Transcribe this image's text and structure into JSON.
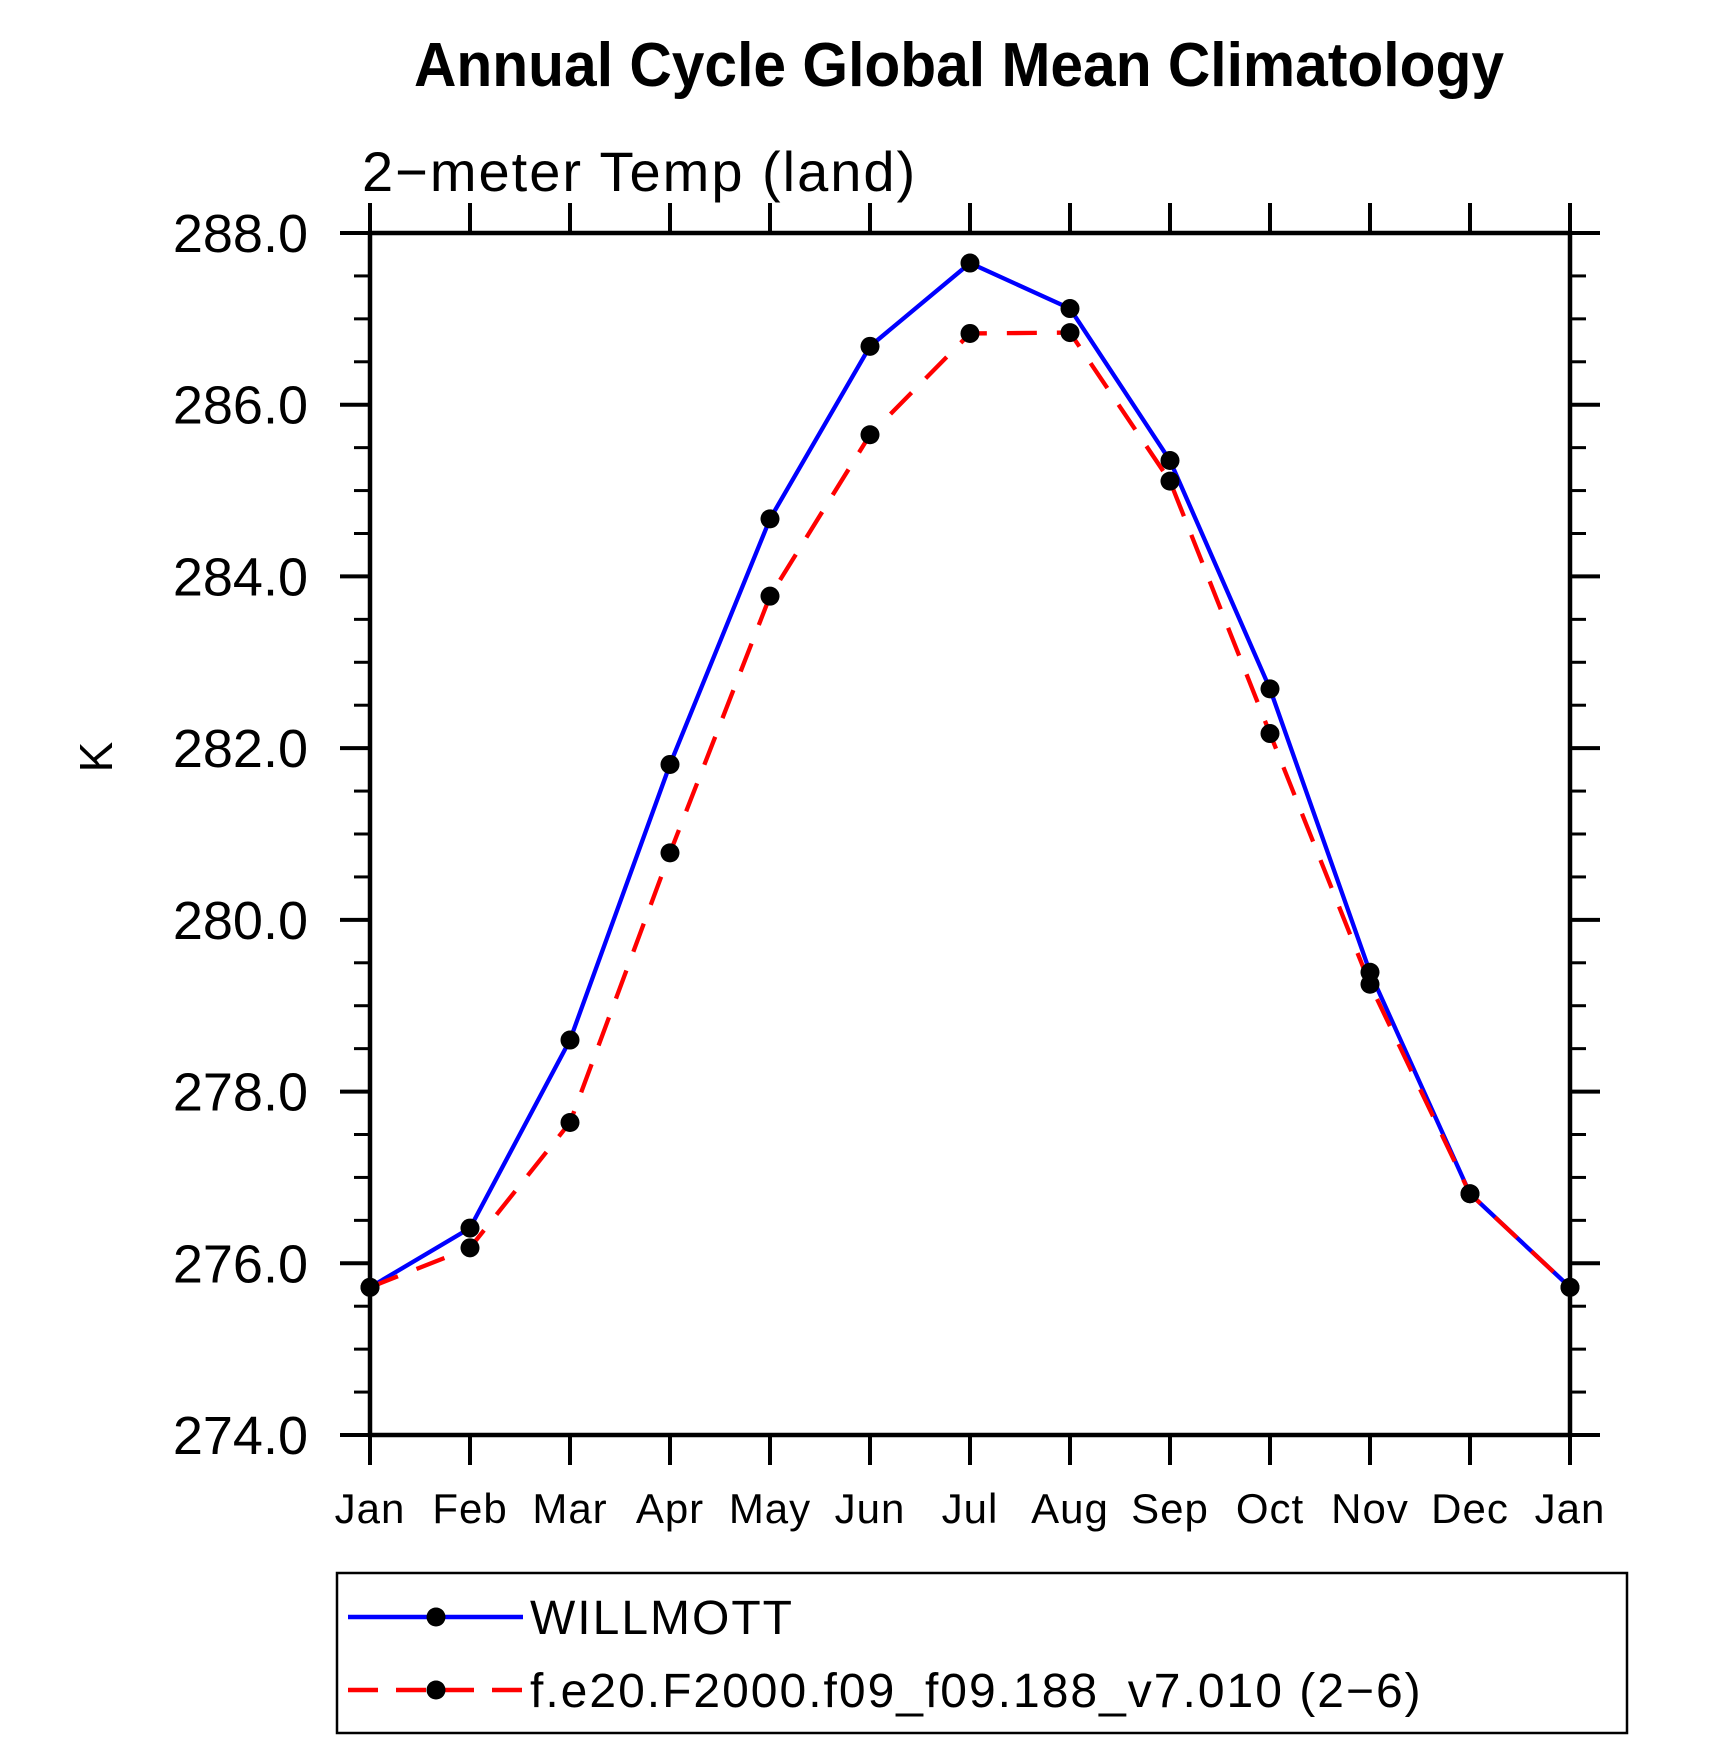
{
  "figure": {
    "title": "Annual Cycle Global Mean Climatology",
    "subtitle": "2−meter Temp (land)",
    "y_axis_title": "K"
  },
  "chart_data": {
    "type": "line",
    "title": "Annual Cycle Global Mean Climatology",
    "subtitle": "2−meter Temp (land)",
    "xlabel": "",
    "ylabel": "K",
    "categories": [
      "Jan",
      "Feb",
      "Mar",
      "Apr",
      "May",
      "Jun",
      "Jul",
      "Aug",
      "Sep",
      "Oct",
      "Nov",
      "Dec",
      "Jan"
    ],
    "ylim": [
      274.0,
      288.0
    ],
    "ytick_major_interval": 2.0,
    "ytick_minor_interval": 0.5,
    "ytick_labels": [
      "274.0",
      "276.0",
      "278.0",
      "280.0",
      "282.0",
      "284.0",
      "286.0",
      "288.0"
    ],
    "grid": false,
    "legend_position": "bottom-left-box",
    "marker": {
      "shape": "filled-circle",
      "color": "#000000"
    },
    "series": [
      {
        "name": "WILLMOTT",
        "color": "#0000ff",
        "line_style": "solid",
        "values": [
          275.72,
          276.41,
          278.6,
          281.81,
          284.67,
          286.68,
          287.65,
          287.12,
          285.35,
          282.69,
          279.39,
          276.81,
          275.72
        ]
      },
      {
        "name": "f.e20.F2000.f09_f09.188_v7.010 (2−6)",
        "color": "#ff0000",
        "line_style": "dashed",
        "values": [
          275.72,
          276.18,
          277.64,
          280.78,
          283.77,
          285.65,
          286.83,
          286.84,
          285.11,
          282.17,
          279.25,
          276.81,
          275.72
        ]
      }
    ],
    "axis_color": "#000000"
  }
}
